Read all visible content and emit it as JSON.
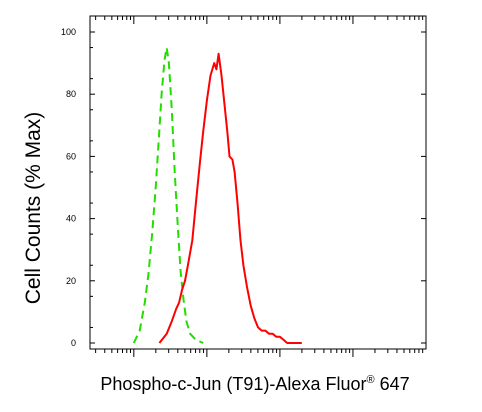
{
  "chart_data": {
    "type": "line",
    "xlabel": "Phospho-c-Jun (T91)-Alexa Fluor",
    "xlabel_superscript": "®",
    "xlabel_suffix": " 647",
    "ylabel": "Cell Counts (% Max)",
    "ylim": [
      0,
      100
    ],
    "yticks": [
      "0",
      "20",
      "40",
      "60",
      "80",
      "100"
    ],
    "x_scale": "log",
    "xlim": [
      -0.6,
      4.0
    ],
    "grid": false,
    "legend": "none",
    "series": [
      {
        "color": "#22dd00",
        "style": "dashed",
        "points": [
          [
            0.0,
            0
          ],
          [
            0.08,
            4
          ],
          [
            0.15,
            13
          ],
          [
            0.2,
            22
          ],
          [
            0.25,
            35
          ],
          [
            0.3,
            50
          ],
          [
            0.34,
            65
          ],
          [
            0.38,
            80
          ],
          [
            0.42,
            91
          ],
          [
            0.45,
            95
          ],
          [
            0.48,
            90
          ],
          [
            0.52,
            75
          ],
          [
            0.56,
            55
          ],
          [
            0.6,
            38
          ],
          [
            0.64,
            23
          ],
          [
            0.68,
            14
          ],
          [
            0.72,
            7
          ],
          [
            0.77,
            3
          ],
          [
            0.85,
            1
          ],
          [
            0.95,
            0
          ]
        ]
      },
      {
        "color": "#ff0000",
        "style": "solid",
        "points": [
          [
            0.35,
            0
          ],
          [
            0.45,
            3
          ],
          [
            0.52,
            7
          ],
          [
            0.58,
            11
          ],
          [
            0.62,
            13
          ],
          [
            0.66,
            17
          ],
          [
            0.7,
            20
          ],
          [
            0.74,
            25
          ],
          [
            0.8,
            33
          ],
          [
            0.85,
            45
          ],
          [
            0.9,
            57
          ],
          [
            0.95,
            68
          ],
          [
            1.0,
            78
          ],
          [
            1.05,
            86
          ],
          [
            1.1,
            90
          ],
          [
            1.13,
            88
          ],
          [
            1.16,
            93
          ],
          [
            1.2,
            86
          ],
          [
            1.24,
            77
          ],
          [
            1.28,
            68
          ],
          [
            1.31,
            60
          ],
          [
            1.35,
            59
          ],
          [
            1.38,
            55
          ],
          [
            1.42,
            45
          ],
          [
            1.46,
            33
          ],
          [
            1.5,
            25
          ],
          [
            1.55,
            18
          ],
          [
            1.6,
            12
          ],
          [
            1.65,
            8
          ],
          [
            1.7,
            5
          ],
          [
            1.75,
            4
          ],
          [
            1.8,
            4
          ],
          [
            1.85,
            3
          ],
          [
            1.9,
            3
          ],
          [
            1.95,
            2
          ],
          [
            2.0,
            2
          ],
          [
            2.05,
            1
          ],
          [
            2.1,
            0
          ],
          [
            2.3,
            0
          ]
        ]
      }
    ]
  }
}
